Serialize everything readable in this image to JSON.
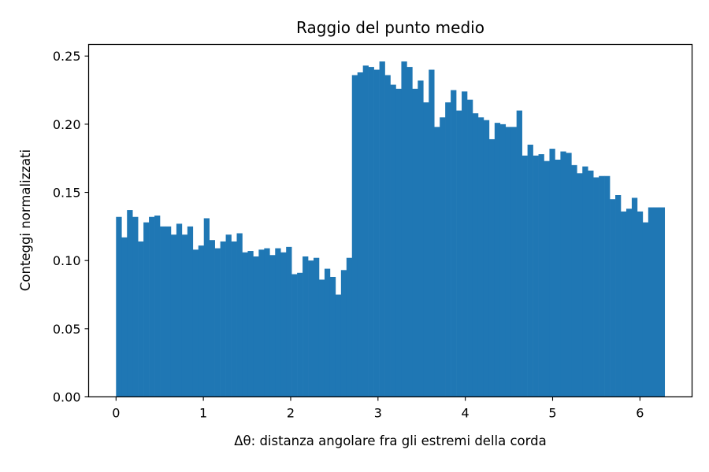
{
  "chart_data": {
    "type": "bar",
    "title": "Raggio del punto medio",
    "xlabel_symbol": "Δθ",
    "xlabel_rest": ": distanza angolare fra gli estremi della corda",
    "ylabel": "Conteggi normalizzati",
    "xlim": [
      -0.314,
      6.597
    ],
    "ylim": [
      0,
      0.2585
    ],
    "xticks": [
      0,
      1,
      2,
      3,
      4,
      5,
      6
    ],
    "xtick_labels": [
      "0",
      "1",
      "2",
      "3",
      "4",
      "5",
      "6"
    ],
    "yticks": [
      0,
      0.05,
      0.1,
      0.15,
      0.2,
      0.25
    ],
    "ytick_labels": [
      "0.00",
      "0.05",
      "0.10",
      "0.15",
      "0.20",
      "0.25"
    ],
    "bin_start": 0,
    "bin_end": 6.2832,
    "bin_count": 100,
    "grid": false,
    "color": "#1f77b4",
    "values": [
      0.132,
      0.117,
      0.137,
      0.132,
      0.114,
      0.128,
      0.132,
      0.133,
      0.125,
      0.125,
      0.119,
      0.127,
      0.119,
      0.125,
      0.108,
      0.111,
      0.131,
      0.115,
      0.109,
      0.114,
      0.119,
      0.114,
      0.12,
      0.106,
      0.107,
      0.103,
      0.108,
      0.109,
      0.104,
      0.109,
      0.106,
      0.11,
      0.09,
      0.091,
      0.103,
      0.1,
      0.102,
      0.086,
      0.094,
      0.088,
      0.075,
      0.093,
      0.102,
      0.236,
      0.238,
      0.243,
      0.242,
      0.24,
      0.246,
      0.236,
      0.229,
      0.226,
      0.246,
      0.242,
      0.226,
      0.232,
      0.216,
      0.24,
      0.198,
      0.205,
      0.216,
      0.225,
      0.21,
      0.224,
      0.218,
      0.208,
      0.205,
      0.203,
      0.189,
      0.201,
      0.2,
      0.198,
      0.198,
      0.21,
      0.177,
      0.185,
      0.177,
      0.178,
      0.173,
      0.182,
      0.174,
      0.18,
      0.179,
      0.17,
      0.164,
      0.169,
      0.166,
      0.161,
      0.162,
      0.162,
      0.145,
      0.148,
      0.136,
      0.138,
      0.146,
      0.136,
      0.128,
      0.139,
      0.139,
      0.139
    ]
  }
}
